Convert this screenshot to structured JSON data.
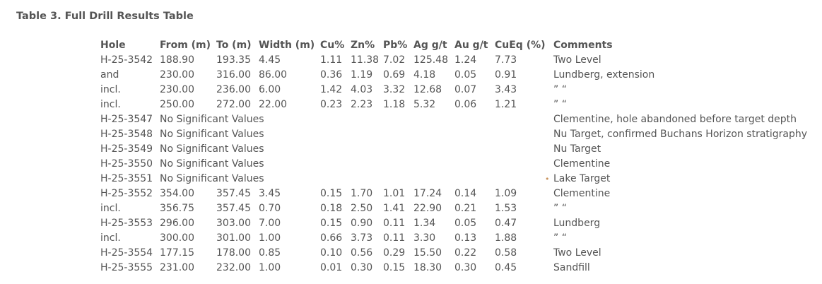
{
  "caption": "Table 3. Full Drill Results Table",
  "table": {
    "headers": {
      "hole": "Hole",
      "from": "From (m)",
      "to": "To (m)",
      "width": "Width (m)",
      "cu": "Cu%",
      "zn": "Zn%",
      "pb": "Pb%",
      "ag": "Ag g/t",
      "au": "Au g/t",
      "cueq": "CuEq (%)",
      "comments": "Comments"
    },
    "rows": [
      {
        "hole": "H-25-3542",
        "from": "188.90",
        "to": "193.35",
        "width": "4.45",
        "cu": "1.11",
        "zn": "11.38",
        "pb": "7.02",
        "ag": "125.48",
        "au": "1.24",
        "cueq": "7.73",
        "comments": "Two Level"
      },
      {
        "hole": "and",
        "from": "230.00",
        "to": "316.00",
        "width": "86.00",
        "cu": "0.36",
        "zn": "1.19",
        "pb": "0.69",
        "ag": "4.18",
        "au": "0.05",
        "cueq": "0.91",
        "comments": "Lundberg, extension"
      },
      {
        "hole": "incl.",
        "from": "230.00",
        "to": "236.00",
        "width": "6.00",
        "cu": "1.42",
        "zn": "4.03",
        "pb": "3.32",
        "ag": "12.68",
        "au": "0.07",
        "cueq": "3.43",
        "comments": "” “"
      },
      {
        "hole": "incl.",
        "from": "250.00",
        "to": "272.00",
        "width": "22.00",
        "cu": "0.23",
        "zn": "2.23",
        "pb": "1.18",
        "ag": "5.32",
        "au": "0.06",
        "cueq": "1.21",
        "comments": "” “"
      },
      {
        "hole": "H-25-3547",
        "note": "No Significant Values",
        "comments": "Clementine, hole abandoned before target depth"
      },
      {
        "hole": "H-25-3548",
        "note": "No Significant Values",
        "comments": "Nu Target, confirmed Buchans Horizon stratigraphy"
      },
      {
        "hole": "H-25-3549",
        "note": "No Significant Values",
        "comments": "Nu Target"
      },
      {
        "hole": "H-25-3550",
        "note": "No Significant Values",
        "comments": "Clementine"
      },
      {
        "hole": "H-25-3551",
        "note": "No Significant Values",
        "comments": "Lake Target",
        "bullet": "•"
      },
      {
        "hole": "H-25-3552",
        "from": "354.00",
        "to": "357.45",
        "width": "3.45",
        "cu": "0.15",
        "zn": "1.70",
        "pb": "1.01",
        "ag": "17.24",
        "au": "0.14",
        "cueq": "1.09",
        "comments": "Clementine"
      },
      {
        "hole": "incl.",
        "from": "356.75",
        "to": "357.45",
        "width": "0.70",
        "cu": "0.18",
        "zn": "2.50",
        "pb": "1.41",
        "ag": "22.90",
        "au": "0.21",
        "cueq": "1.53",
        "comments": "” “"
      },
      {
        "hole": "H-25-3553",
        "from": "296.00",
        "to": "303.00",
        "width": "7.00",
        "cu": "0.15",
        "zn": "0.90",
        "pb": "0.11",
        "ag": "1.34",
        "au": "0.05",
        "cueq": "0.47",
        "comments": "Lundberg"
      },
      {
        "hole": "incl.",
        "from": "300.00",
        "to": "301.00",
        "width": "1.00",
        "cu": "0.66",
        "zn": "3.73",
        "pb": "0.11",
        "ag": "3.30",
        "au": "0.13",
        "cueq": "1.88",
        "comments": "” “"
      },
      {
        "hole": "H-25-3554",
        "from": "177.15",
        "to": "178.00",
        "width": "0.85",
        "cu": "0.10",
        "zn": "0.56",
        "pb": "0.29",
        "ag": "15.50",
        "au": "0.22",
        "cueq": "0.58",
        "comments": "Two Level"
      },
      {
        "hole": "H-25-3555",
        "from": "231.00",
        "to": "232.00",
        "width": "1.00",
        "cu": "0.01",
        "zn": "0.30",
        "pb": "0.15",
        "ag": "18.30",
        "au": "0.30",
        "cueq": "0.45",
        "comments": "Sandfill"
      }
    ]
  }
}
